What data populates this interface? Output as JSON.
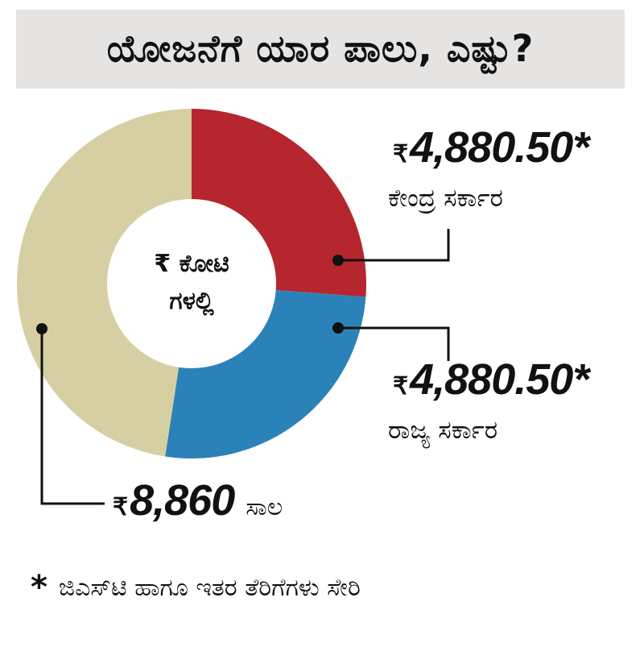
{
  "title": "ಯೋಜನೆಗೆ ಯಾರ ಪಾಲು, ಎಷ್ಟು?",
  "chart_data": {
    "type": "pie",
    "title": "ಯೋಜನೆಗೆ ಯಾರ ಪಾಲು, ಎಷ್ಟು?",
    "center_label": [
      "₹ ಕೋಟಿ",
      "ಗಳಲ್ಲಿ"
    ],
    "currency_symbol": "₹",
    "slices": [
      {
        "label": "ಕೇಂದ್ರ ಸರ್ಕಾರ",
        "value": 4880.5,
        "value_text": "4,880.50*",
        "color": "#b5262f"
      },
      {
        "label": "ರಾಜ್ಯ ಸರ್ಕಾರ",
        "value": 4880.5,
        "value_text": "4,880.50*",
        "color": "#2b82b8"
      },
      {
        "label": "ಸಾಲ",
        "value": 8860,
        "value_text": "8,860",
        "color": "#d6cfa3"
      }
    ]
  },
  "footnote": {
    "star": "*",
    "text": "ಜಿಎಸ್‌ಟಿ ಹಾಗೂ ಇತರ ತೆರಿಗೆಗಳು ಸೇರಿ"
  }
}
